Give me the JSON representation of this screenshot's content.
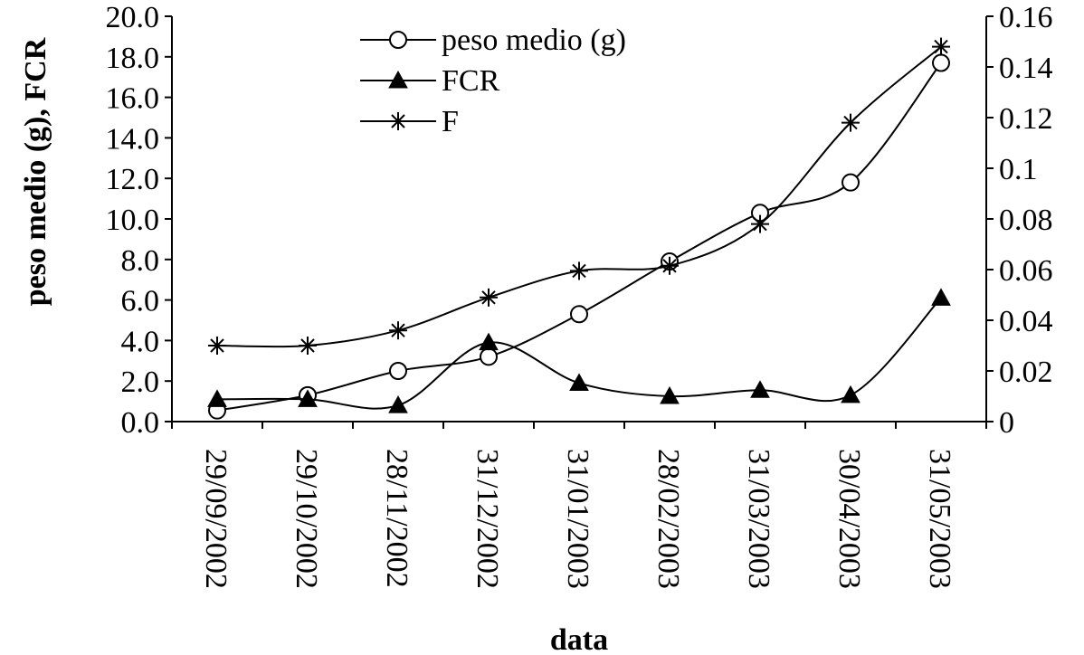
{
  "chart_data": {
    "type": "line",
    "xlabel": "data",
    "ylabel": "peso medio (g), FCR",
    "categories": [
      "29/09/2002",
      "29/10/2002",
      "28/11/2002",
      "31/12/2002",
      "31/01/2003",
      "28/02/2003",
      "31/03/2003",
      "30/04/2003",
      "31/05/2003"
    ],
    "y_left": {
      "min": 0,
      "max": 20,
      "ticks": [
        "0.0",
        "2.0",
        "4.0",
        "6.0",
        "8.0",
        "10.0",
        "12.0",
        "14.0",
        "16.0",
        "18.0",
        "20.0"
      ]
    },
    "y_right": {
      "min": 0,
      "max": 0.16,
      "ticks": [
        "0",
        "0.02",
        "0.04",
        "0.06",
        "0.08",
        "0.1",
        "0.12",
        "0.14",
        "0.16"
      ]
    },
    "series": [
      {
        "name": "peso medio (g)",
        "axis": "left",
        "marker": "circle",
        "values": [
          0.55,
          1.3,
          2.5,
          3.2,
          5.3,
          7.9,
          10.3,
          11.8,
          17.7
        ]
      },
      {
        "name": "FCR",
        "axis": "left",
        "marker": "triangle",
        "values": [
          1.1,
          1.1,
          0.8,
          3.9,
          1.9,
          1.25,
          1.55,
          1.3,
          6.1
        ]
      },
      {
        "name": "F",
        "axis": "right",
        "marker": "asterisk",
        "values": [
          0.03,
          0.03,
          0.036,
          0.049,
          0.0595,
          0.0615,
          0.078,
          0.118,
          0.148
        ]
      }
    ],
    "legend_position": "top-center",
    "grid": false
  }
}
